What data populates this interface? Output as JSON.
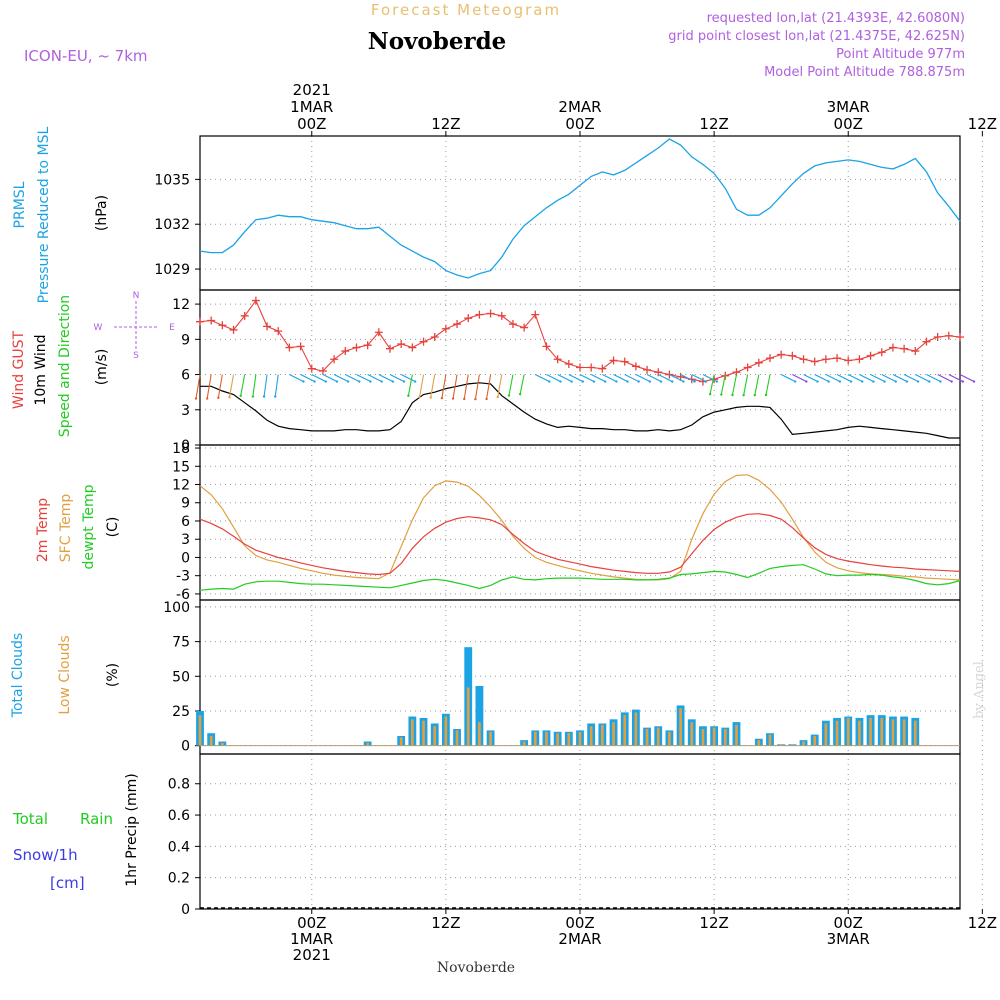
{
  "header": {
    "product": "Forecast Meteogram",
    "location": "Novoberde",
    "model": "ICON-EU, ~ 7km",
    "requested": "requested lon,lat (21.4393E, 42.6080N)",
    "gridpoint": "grid point closest lon,lat (21.4375E, 42.625N)",
    "point_alt": "Point Altitude 977m",
    "model_alt": "Model Point Altitude 788.875m",
    "footer": "Novoberde",
    "watermark": "by Angel"
  },
  "time_axis": {
    "top": [
      {
        "x": 0,
        "lines": [
          "2021",
          "1MAR",
          "00Z"
        ]
      },
      {
        "x": 12,
        "lines": [
          "12Z"
        ]
      },
      {
        "x": 24,
        "lines": [
          "2MAR",
          "00Z"
        ]
      },
      {
        "x": 36,
        "lines": [
          "12Z"
        ]
      },
      {
        "x": 48,
        "lines": [
          "3MAR",
          "00Z"
        ]
      },
      {
        "x": 60,
        "lines": [
          "12Z"
        ]
      }
    ],
    "bottom": [
      {
        "x": 0,
        "lines": [
          "00Z",
          "1MAR",
          "2021"
        ]
      },
      {
        "x": 12,
        "lines": [
          "12Z"
        ]
      },
      {
        "x": 24,
        "lines": [
          "00Z",
          "2MAR"
        ]
      },
      {
        "x": 36,
        "lines": [
          "12Z"
        ]
      },
      {
        "x": 48,
        "lines": [
          "00Z",
          "3MAR"
        ]
      },
      {
        "x": 60,
        "lines": [
          "12Z"
        ]
      }
    ]
  },
  "labels": {
    "pressure": [
      "PRMSL",
      "Pressure Reduced to MSL",
      "(hPa)"
    ],
    "wind": [
      "Wind GUST",
      "10m Wind",
      "Speed and Direction",
      "(m/s)"
    ],
    "compass": {
      "n": "N",
      "s": "S",
      "w": "W",
      "e": "E"
    },
    "temp": [
      "2m Temp",
      "SFC Temp",
      "dewpt Temp",
      "(C)"
    ],
    "clouds": [
      "Total Clouds",
      "Low Clouds",
      "(%)"
    ],
    "precip": [
      "Total",
      "Rain",
      "Snow/1h",
      "[cm]",
      "1hr Precip (mm)"
    ]
  },
  "colors": {
    "pressure": "#1ba3e6",
    "gust": "#e8413c",
    "wind": "#000000",
    "temp2m": "#e8413c",
    "sfc": "#e0a040",
    "dewpt": "#22cc22",
    "total_clouds": "#1ba3e6",
    "low_clouds": "#e0a040",
    "rain": "#22cc22",
    "snow": "#3a3ae6",
    "meta": "#b060e0",
    "title": "#e8c070"
  },
  "chart_data": [
    {
      "type": "line",
      "title": "PRMSL",
      "ylabel": "(hPa)",
      "xlim": [
        -10,
        58
      ],
      "ylim": [
        1027.6,
        1037.9
      ],
      "yticks": [
        1029,
        1032,
        1035
      ],
      "x": [
        -10,
        -9,
        -8,
        -7,
        -6,
        -5,
        -4,
        -3,
        -2,
        -1,
        0,
        1,
        2,
        3,
        4,
        5,
        6,
        7,
        8,
        9,
        10,
        11,
        12,
        13,
        14,
        15,
        16,
        17,
        18,
        19,
        20,
        21,
        22,
        23,
        24,
        25,
        26,
        27,
        28,
        29,
        30,
        31,
        32,
        33,
        34,
        35,
        36,
        37,
        38,
        39,
        40,
        41,
        42,
        43,
        44,
        45,
        46,
        47,
        48,
        49,
        50,
        51,
        52,
        53,
        54,
        55,
        56,
        57,
        58
      ],
      "series": [
        {
          "name": "PRMSL",
          "values": [
            1030.2,
            1030.1,
            1030.1,
            1030.6,
            1031.5,
            1032.3,
            1032.4,
            1032.6,
            1032.5,
            1032.5,
            1032.3,
            1032.2,
            1032.1,
            1031.9,
            1031.7,
            1031.7,
            1031.8,
            1031.2,
            1030.6,
            1030.2,
            1029.8,
            1029.5,
            1028.9,
            1028.6,
            1028.4,
            1028.7,
            1028.9,
            1029.8,
            1031.0,
            1031.9,
            1032.5,
            1033.1,
            1033.6,
            1034.0,
            1034.6,
            1035.2,
            1035.5,
            1035.3,
            1035.6,
            1036.1,
            1036.6,
            1037.1,
            1037.7,
            1037.3,
            1036.5,
            1036.0,
            1035.4,
            1034.4,
            1033.0,
            1032.6,
            1032.6,
            1033.1,
            1033.9,
            1034.7,
            1035.4,
            1035.9,
            1036.1,
            1036.2,
            1036.3,
            1036.2,
            1036.0,
            1035.8,
            1035.7,
            1036.0,
            1036.4,
            1035.5,
            1034.1,
            1033.2,
            1032.2
          ]
        }
      ]
    },
    {
      "type": "line",
      "title": "Wind",
      "ylabel": "(m/s)",
      "xlim": [
        -10,
        58
      ],
      "ylim": [
        0,
        13.2
      ],
      "yticks": [
        0,
        3,
        6,
        9,
        12
      ],
      "x": [
        -10,
        -9,
        -8,
        -7,
        -6,
        -5,
        -4,
        -3,
        -2,
        -1,
        0,
        1,
        2,
        3,
        4,
        5,
        6,
        7,
        8,
        9,
        10,
        11,
        12,
        13,
        14,
        15,
        16,
        17,
        18,
        19,
        20,
        21,
        22,
        23,
        24,
        25,
        26,
        27,
        28,
        29,
        30,
        31,
        32,
        33,
        34,
        35,
        36,
        37,
        38,
        39,
        40,
        41,
        42,
        43,
        44,
        45,
        46,
        47,
        48,
        49,
        50,
        51,
        52,
        53,
        54,
        55,
        56,
        57,
        58
      ],
      "series": [
        {
          "name": "Wind GUST",
          "values": [
            10.5,
            10.6,
            10.2,
            9.8,
            11.0,
            12.3,
            10.1,
            9.7,
            8.3,
            8.4,
            6.5,
            6.3,
            7.3,
            8.0,
            8.3,
            8.5,
            9.6,
            8.2,
            8.6,
            8.3,
            8.8,
            9.2,
            9.9,
            10.3,
            10.8,
            11.1,
            11.2,
            11.0,
            10.3,
            10.0,
            11.1,
            8.4,
            7.3,
            6.9,
            6.6,
            6.6,
            6.5,
            7.2,
            7.1,
            6.7,
            6.4,
            6.2,
            6.0,
            5.8,
            5.6,
            5.4,
            5.6,
            5.9,
            6.2,
            6.6,
            7.0,
            7.4,
            7.7,
            7.6,
            7.3,
            7.1,
            7.3,
            7.4,
            7.2,
            7.3,
            7.6,
            7.9,
            8.3,
            8.2,
            8.0,
            8.8,
            9.2,
            9.3,
            9.2
          ]
        },
        {
          "name": "10m Wind",
          "values": [
            5.0,
            5.0,
            4.6,
            4.3,
            3.6,
            2.9,
            2.1,
            1.6,
            1.4,
            1.3,
            1.2,
            1.2,
            1.2,
            1.3,
            1.3,
            1.2,
            1.2,
            1.3,
            2.0,
            3.6,
            4.3,
            4.5,
            4.8,
            5.0,
            5.2,
            5.3,
            5.2,
            4.2,
            3.5,
            2.8,
            2.2,
            1.8,
            1.5,
            1.6,
            1.5,
            1.4,
            1.4,
            1.3,
            1.3,
            1.2,
            1.2,
            1.3,
            1.2,
            1.3,
            1.7,
            2.4,
            2.8,
            3.0,
            3.2,
            3.3,
            3.3,
            3.2,
            2.2,
            0.9,
            1.0,
            1.1,
            1.2,
            1.3,
            1.5,
            1.6,
            1.5,
            1.4,
            1.3,
            1.2,
            1.1,
            1.0,
            0.8,
            0.6,
            0.6
          ]
        }
      ]
    },
    {
      "type": "line",
      "title": "Temperature",
      "ylabel": "(C)",
      "xlim": [
        -10,
        58
      ],
      "ylim": [
        -7,
        18.5
      ],
      "yticks": [
        -6,
        -3,
        0,
        3,
        6,
        9,
        12,
        15,
        18
      ],
      "x": [
        -10,
        -9,
        -8,
        -7,
        -6,
        -5,
        -4,
        -3,
        -2,
        -1,
        0,
        1,
        2,
        3,
        4,
        5,
        6,
        7,
        8,
        9,
        10,
        11,
        12,
        13,
        14,
        15,
        16,
        17,
        18,
        19,
        20,
        21,
        22,
        23,
        24,
        25,
        26,
        27,
        28,
        29,
        30,
        31,
        32,
        33,
        34,
        35,
        36,
        37,
        38,
        39,
        40,
        41,
        42,
        43,
        44,
        45,
        46,
        47,
        48,
        49,
        50,
        51,
        52,
        53,
        54,
        55,
        56,
        57,
        58
      ],
      "series": [
        {
          "name": "2m Temp",
          "values": [
            6.3,
            5.6,
            4.7,
            3.5,
            2.2,
            1.2,
            0.6,
            0.0,
            -0.4,
            -0.9,
            -1.3,
            -1.7,
            -2.0,
            -2.3,
            -2.5,
            -2.7,
            -2.8,
            -2.6,
            -1.0,
            1.5,
            3.4,
            4.8,
            5.8,
            6.4,
            6.7,
            6.5,
            6.2,
            5.4,
            3.8,
            2.3,
            1.0,
            0.3,
            -0.3,
            -0.7,
            -1.1,
            -1.5,
            -1.8,
            -2.1,
            -2.3,
            -2.5,
            -2.6,
            -2.6,
            -2.4,
            -1.6,
            0.6,
            2.8,
            4.6,
            5.8,
            6.6,
            7.1,
            7.2,
            6.9,
            6.3,
            4.9,
            3.2,
            1.6,
            0.5,
            -0.2,
            -0.6,
            -0.9,
            -1.2,
            -1.4,
            -1.6,
            -1.7,
            -1.9,
            -2.0,
            -2.1,
            -2.2,
            -2.3
          ]
        },
        {
          "name": "SFC Temp",
          "values": [
            11.8,
            10.3,
            8.0,
            5.0,
            1.9,
            0.3,
            -0.4,
            -0.8,
            -1.3,
            -1.8,
            -2.2,
            -2.6,
            -2.9,
            -3.1,
            -3.3,
            -3.4,
            -3.5,
            -2.5,
            1.8,
            6.2,
            9.8,
            11.8,
            12.6,
            12.4,
            11.7,
            10.2,
            8.3,
            6.1,
            3.5,
            1.5,
            0.0,
            -0.8,
            -1.3,
            -1.8,
            -2.2,
            -2.6,
            -2.9,
            -3.2,
            -3.4,
            -3.6,
            -3.7,
            -3.7,
            -3.5,
            -2.3,
            3.0,
            7.2,
            10.4,
            12.5,
            13.5,
            13.6,
            12.7,
            11.2,
            9.1,
            6.3,
            3.3,
            0.9,
            -0.8,
            -1.7,
            -2.2,
            -2.5,
            -2.7,
            -2.8,
            -2.9,
            -3.1,
            -3.2,
            -3.4,
            -3.5,
            -3.6,
            -3.7
          ]
        },
        {
          "name": "dewpt Temp",
          "values": [
            -5.4,
            -5.2,
            -5.1,
            -5.2,
            -4.4,
            -4.0,
            -3.9,
            -3.9,
            -4.1,
            -4.3,
            -4.4,
            -4.4,
            -4.5,
            -4.6,
            -4.7,
            -4.8,
            -4.9,
            -5.0,
            -4.6,
            -4.2,
            -3.8,
            -3.6,
            -3.8,
            -4.2,
            -4.6,
            -5.1,
            -4.6,
            -3.7,
            -3.2,
            -3.6,
            -3.7,
            -3.5,
            -3.4,
            -3.4,
            -3.4,
            -3.5,
            -3.6,
            -3.6,
            -3.6,
            -3.7,
            -3.7,
            -3.6,
            -3.4,
            -2.8,
            -2.7,
            -2.5,
            -2.3,
            -2.4,
            -2.8,
            -3.3,
            -2.6,
            -1.8,
            -1.5,
            -1.3,
            -1.2,
            -1.9,
            -2.7,
            -3.0,
            -2.9,
            -2.9,
            -2.8,
            -2.9,
            -3.2,
            -3.4,
            -3.8,
            -4.3,
            -4.5,
            -4.3,
            -3.8
          ]
        }
      ]
    },
    {
      "type": "bar",
      "title": "Clouds",
      "ylabel": "(%)",
      "xlim": [
        -10,
        58
      ],
      "ylim": [
        -6,
        105
      ],
      "yticks": [
        0,
        25,
        50,
        75,
        100
      ],
      "x": [
        -10,
        -9,
        -8,
        -7,
        -6,
        -5,
        -4,
        -3,
        -2,
        -1,
        0,
        1,
        2,
        3,
        4,
        5,
        6,
        7,
        8,
        9,
        10,
        11,
        12,
        13,
        14,
        15,
        16,
        17,
        18,
        19,
        20,
        21,
        22,
        23,
        24,
        25,
        26,
        27,
        28,
        29,
        30,
        31,
        32,
        33,
        34,
        35,
        36,
        37,
        38,
        39,
        40,
        41,
        42,
        43,
        44,
        45,
        46,
        47,
        48,
        49,
        50,
        51,
        52,
        53,
        54,
        55,
        56,
        57,
        58
      ],
      "series": [
        {
          "name": "Total Clouds",
          "values": [
            25,
            9,
            3,
            0,
            0,
            0,
            0,
            0,
            0,
            0,
            0,
            0,
            0,
            0,
            0,
            3,
            0,
            0,
            7,
            21,
            20,
            16,
            23,
            12,
            71,
            43,
            11,
            0,
            0,
            4,
            11,
            11,
            10,
            10,
            11,
            16,
            16,
            19,
            24,
            26,
            13,
            14,
            11,
            29,
            19,
            14,
            14,
            13,
            17,
            0,
            5,
            9,
            1,
            1,
            4,
            8,
            18,
            20,
            21,
            20,
            22,
            22,
            21,
            21,
            20,
            0,
            0,
            0,
            0
          ]
        },
        {
          "name": "Low Clouds",
          "values": [
            22,
            7,
            2,
            0,
            0,
            0,
            0,
            0,
            0,
            0,
            0,
            0,
            0,
            0,
            0,
            2,
            0,
            0,
            6,
            19,
            18,
            14,
            21,
            11,
            42,
            17,
            10,
            0,
            0,
            3,
            10,
            10,
            9,
            9,
            10,
            14,
            15,
            17,
            22,
            24,
            12,
            13,
            10,
            27,
            17,
            12,
            13,
            12,
            15,
            0,
            4,
            8,
            1,
            1,
            3,
            7,
            16,
            18,
            20,
            18,
            20,
            20,
            19,
            19,
            18,
            0,
            0,
            0,
            0
          ]
        }
      ]
    },
    {
      "type": "bar",
      "title": "Precipitation",
      "ylabel": "1hr Precip (mm)",
      "xlim": [
        -10,
        58
      ],
      "ylim": [
        0,
        0.99
      ],
      "yticks": [
        0,
        0.2,
        0.4,
        0.6,
        0.8
      ],
      "x": [
        -10,
        -9,
        -8,
        -7,
        -6,
        -5,
        -4,
        -3,
        -2,
        -1,
        0,
        1,
        2,
        3,
        4,
        5,
        6,
        7,
        8,
        9,
        10,
        11,
        12,
        13,
        14,
        15,
        16,
        17,
        18,
        19,
        20,
        21,
        22,
        23,
        24,
        25,
        26,
        27,
        28,
        29,
        30,
        31,
        32,
        33,
        34,
        35,
        36,
        37,
        38,
        39,
        40,
        41,
        42,
        43,
        44,
        45,
        46,
        47,
        48,
        49,
        50,
        51,
        52,
        53,
        54,
        55,
        56,
        57,
        58
      ],
      "series": [
        {
          "name": "Total",
          "values": [
            0,
            0,
            0,
            0,
            0,
            0,
            0,
            0,
            0,
            0,
            0,
            0,
            0,
            0,
            0,
            0,
            0,
            0,
            0,
            0,
            0,
            0,
            0,
            0,
            0,
            0,
            0,
            0,
            0,
            0,
            0,
            0,
            0,
            0,
            0,
            0,
            0,
            0,
            0,
            0,
            0,
            0,
            0,
            0,
            0,
            0,
            0,
            0,
            0,
            0,
            0,
            0,
            0,
            0,
            0,
            0,
            0,
            0,
            0,
            0,
            0,
            0,
            0,
            0,
            0,
            0,
            0,
            0,
            0
          ]
        }
      ]
    }
  ]
}
